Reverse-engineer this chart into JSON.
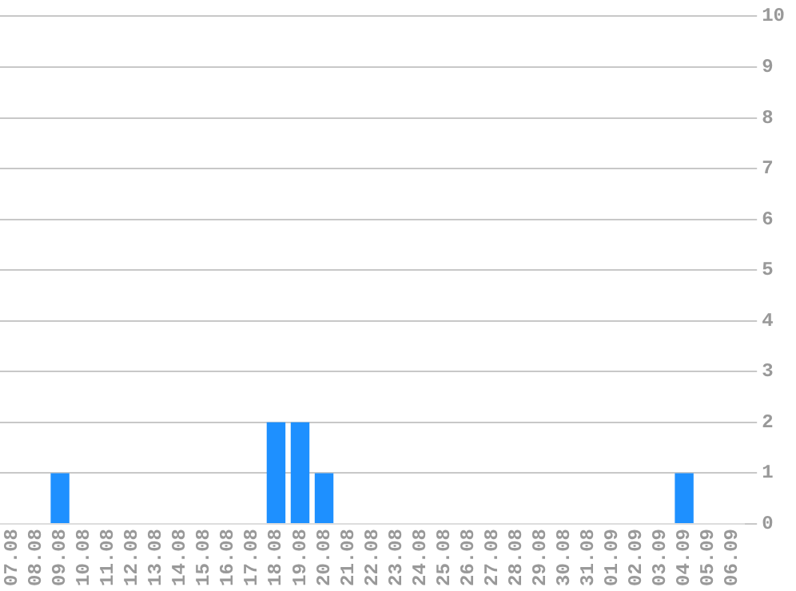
{
  "chart_data": {
    "type": "bar",
    "categories": [
      "07.08",
      "08.08",
      "09.08",
      "10.08",
      "11.08",
      "12.08",
      "13.08",
      "14.08",
      "15.08",
      "16.08",
      "17.08",
      "18.08",
      "19.08",
      "20.08",
      "21.08",
      "22.08",
      "23.08",
      "24.08",
      "25.08",
      "26.08",
      "27.08",
      "28.08",
      "29.08",
      "30.08",
      "31.08",
      "01.09",
      "02.09",
      "03.09",
      "04.09",
      "05.09",
      "06.09"
    ],
    "values": [
      0,
      0,
      1,
      0,
      0,
      0,
      0,
      0,
      0,
      0,
      0,
      2,
      2,
      1,
      0,
      0,
      0,
      0,
      0,
      0,
      0,
      0,
      0,
      0,
      0,
      0,
      0,
      0,
      1,
      0,
      0
    ],
    "color": "#1e90ff",
    "ylim": [
      0,
      10
    ],
    "yticks": [
      0,
      1,
      2,
      3,
      4,
      5,
      6,
      7,
      8,
      9,
      10
    ],
    "grid": "y",
    "legend": false
  }
}
